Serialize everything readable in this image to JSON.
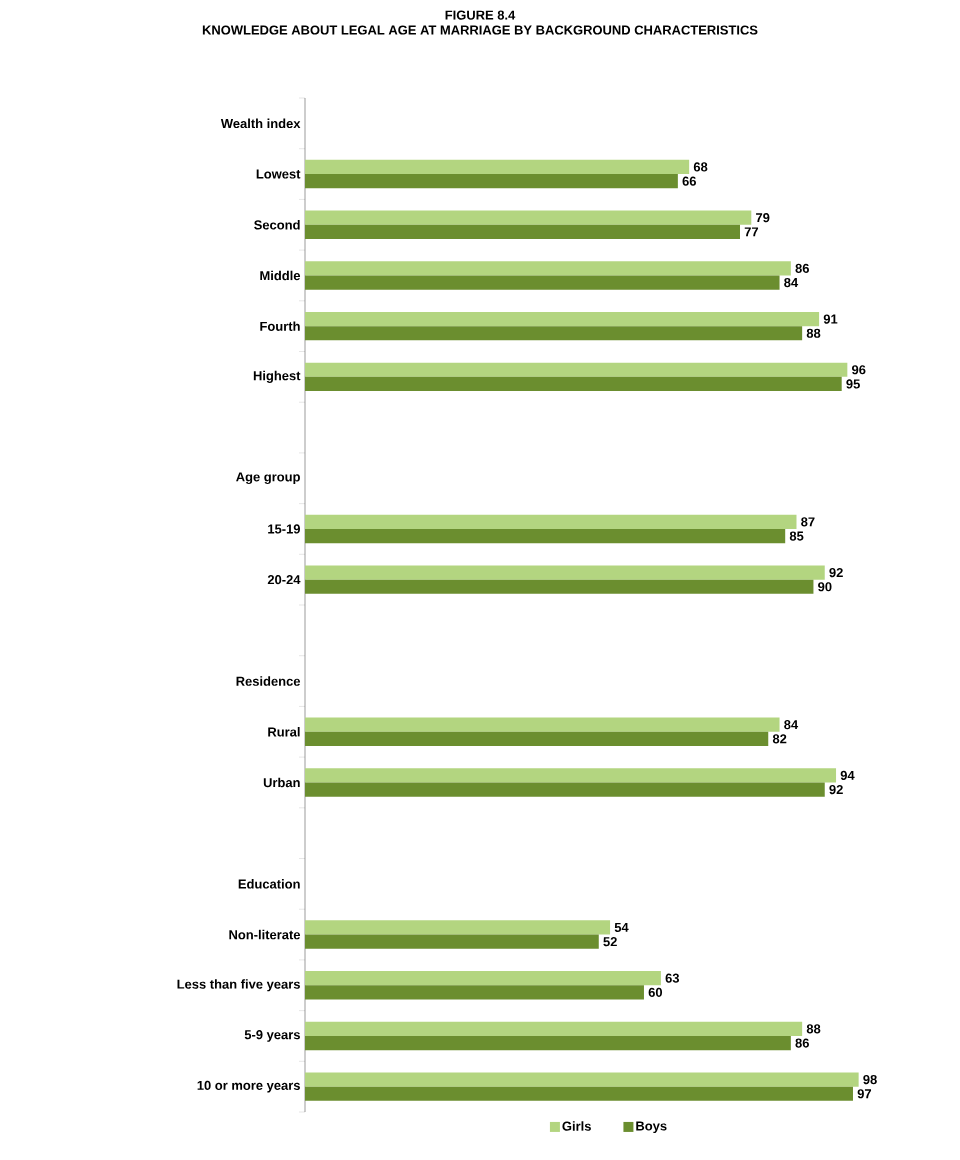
{
  "chart_data": {
    "type": "bar",
    "orientation": "horizontal",
    "title": "FIGURE 8.4",
    "subtitle": "KNOWLEDGE ABOUT LEGAL AGE AT MARRIAGE BY BACKGROUND CHARACTERISTICS",
    "categories": [
      "Wealth index",
      "Lowest",
      "Second",
      "Middle",
      "Fourth",
      "Highest",
      null,
      "Age group",
      "15-19",
      "20-24",
      null,
      "Residence",
      "Rural",
      "Urban",
      null,
      "Education",
      "Non-literate",
      "Less than five years",
      "5-9 years",
      "10 or more years"
    ],
    "data_labels": true,
    "legend": "bottom",
    "series": [
      {
        "name": "Girls",
        "color": "#b3d580",
        "values": [
          null,
          68,
          79,
          86,
          91,
          96,
          null,
          null,
          87,
          92,
          null,
          null,
          84,
          94,
          null,
          null,
          54,
          63,
          88,
          98
        ]
      },
      {
        "name": "Boys",
        "color": "#6b8e2f",
        "values": [
          null,
          66,
          77,
          84,
          88,
          95,
          null,
          null,
          85,
          90,
          null,
          null,
          82,
          92,
          null,
          null,
          52,
          60,
          86,
          97
        ]
      }
    ]
  }
}
